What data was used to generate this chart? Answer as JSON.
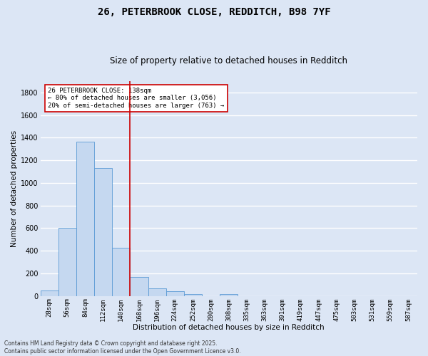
{
  "title_line1": "26, PETERBROOK CLOSE, REDDITCH, B98 7YF",
  "title_line2": "Size of property relative to detached houses in Redditch",
  "xlabel": "Distribution of detached houses by size in Redditch",
  "ylabel": "Number of detached properties",
  "bar_color": "#c5d8f0",
  "bar_edge_color": "#5b9bd5",
  "fig_bg_color": "#dce6f5",
  "ax_bg_color": "#dce6f5",
  "grid_color": "#ffffff",
  "vline_color": "#cc0000",
  "annotation_text": "26 PETERBROOK CLOSE: 138sqm\n← 80% of detached houses are smaller (3,056)\n20% of semi-detached houses are larger (763) →",
  "annotation_box_facecolor": "#ffffff",
  "annotation_box_edge": "#cc0000",
  "bins": [
    "28sqm",
    "56sqm",
    "84sqm",
    "112sqm",
    "140sqm",
    "168sqm",
    "196sqm",
    "224sqm",
    "252sqm",
    "280sqm",
    "308sqm",
    "335sqm",
    "363sqm",
    "391sqm",
    "419sqm",
    "447sqm",
    "475sqm",
    "503sqm",
    "531sqm",
    "559sqm",
    "587sqm"
  ],
  "values": [
    50,
    605,
    1365,
    1130,
    430,
    170,
    65,
    40,
    15,
    0,
    15,
    0,
    0,
    0,
    0,
    0,
    0,
    0,
    0,
    0,
    0
  ],
  "ylim": [
    0,
    1900
  ],
  "yticks": [
    0,
    200,
    400,
    600,
    800,
    1000,
    1200,
    1400,
    1600,
    1800
  ],
  "vline_index": 4.5,
  "footnote": "Contains HM Land Registry data © Crown copyright and database right 2025.\nContains public sector information licensed under the Open Government Licence v3.0."
}
